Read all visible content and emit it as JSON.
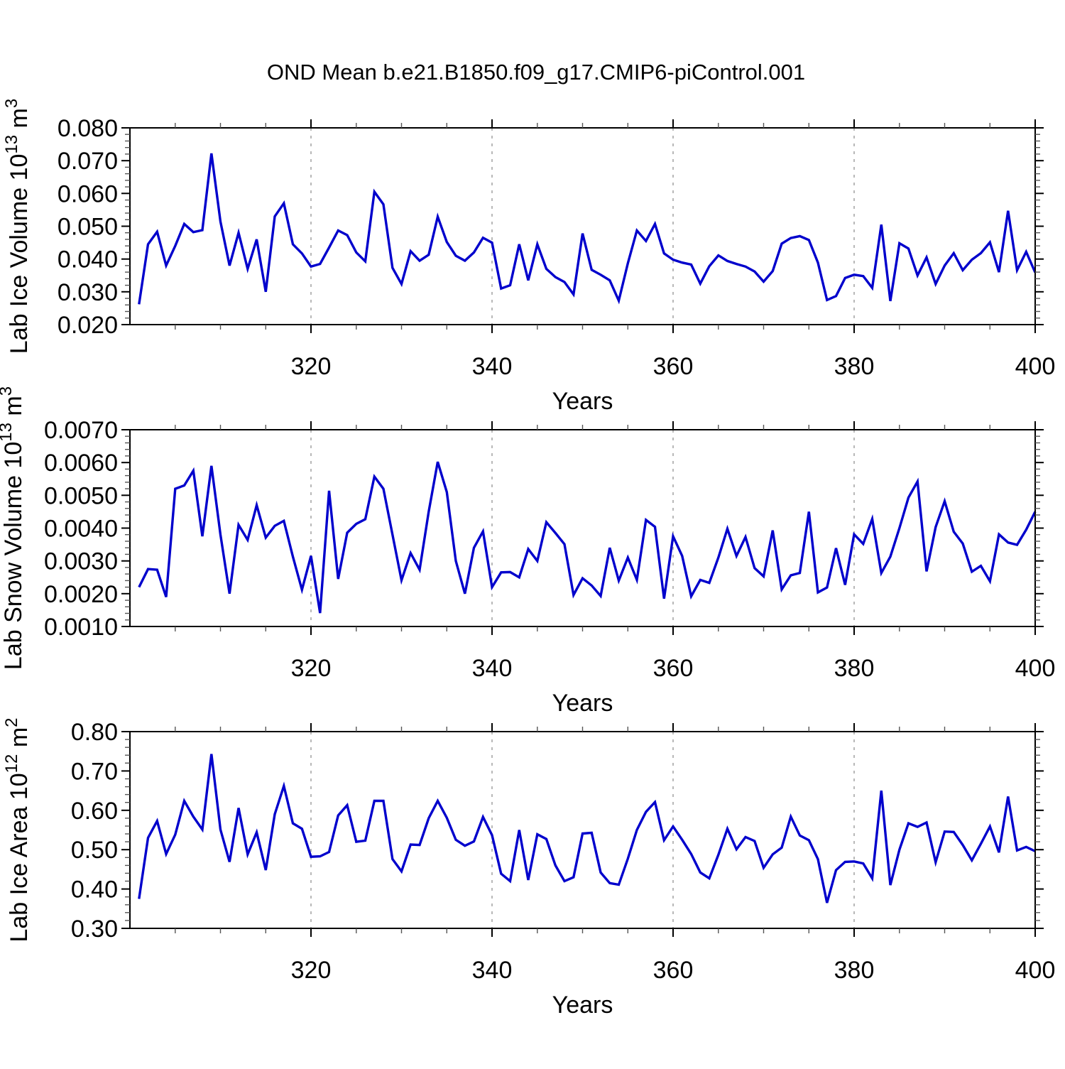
{
  "chart_data": {
    "type": "line",
    "title": "OND Mean b.e21.B1850.f09_g17.CMIP6-piControl.001",
    "xlabel": "Years",
    "line_color": "#0000cc",
    "gridline_color": "#999999",
    "axis_color": "#000000",
    "legend": "none",
    "grid": "dashed vertical lines at x major ticks",
    "x_axis": {
      "min": 300,
      "max": 400,
      "major_ticks": [
        320,
        340,
        360,
        380,
        400
      ],
      "major_tick_labels": [
        "320",
        "340",
        "360",
        "380",
        "400"
      ],
      "minor_step": 5,
      "gridlines": [
        320,
        340,
        360,
        380
      ]
    },
    "x": [
      301,
      302,
      303,
      304,
      305,
      306,
      307,
      308,
      309,
      310,
      311,
      312,
      313,
      314,
      315,
      316,
      317,
      318,
      319,
      320,
      321,
      322,
      323,
      324,
      325,
      326,
      327,
      328,
      329,
      330,
      331,
      332,
      333,
      334,
      335,
      336,
      337,
      338,
      339,
      340,
      341,
      342,
      343,
      344,
      345,
      346,
      347,
      348,
      349,
      350,
      351,
      352,
      353,
      354,
      355,
      356,
      357,
      358,
      359,
      360,
      361,
      362,
      363,
      364,
      365,
      366,
      367,
      368,
      369,
      370,
      371,
      372,
      373,
      374,
      375,
      376,
      377,
      378,
      379,
      380,
      381,
      382,
      383,
      384,
      385,
      386,
      387,
      388,
      389,
      390,
      391,
      392,
      393,
      394,
      395,
      396,
      397,
      398,
      399,
      400
    ],
    "panels": [
      {
        "name": "ice-volume",
        "ylabel": "Lab Ice Volume 10^13 m^3",
        "ylabel_parts": [
          {
            "t": "Lab Ice Volume 10"
          },
          {
            "t": "13",
            "sup": true
          },
          {
            "t": " m",
            "reset": true
          },
          {
            "t": "3",
            "sup": true
          }
        ],
        "ylabel_x": 38,
        "ylim": [
          0.02,
          0.08
        ],
        "yticks": [
          0.02,
          0.03,
          0.04,
          0.05,
          0.06,
          0.07,
          0.08
        ],
        "ytick_labels": [
          "0.020",
          "0.030",
          "0.040",
          "0.050",
          "0.060",
          "0.070",
          "0.080"
        ],
        "yminor_step": 0.002,
        "values": [
          0.0262,
          0.0445,
          0.0483,
          0.038,
          0.044,
          0.0507,
          0.0482,
          0.0488,
          0.0722,
          0.0514,
          0.038,
          0.048,
          0.037,
          0.046,
          0.03,
          0.053,
          0.057,
          0.0445,
          0.0417,
          0.0377,
          0.0385,
          0.0435,
          0.0487,
          0.0473,
          0.042,
          0.0393,
          0.0605,
          0.0567,
          0.0373,
          0.0324,
          0.0424,
          0.0395,
          0.0413,
          0.0529,
          0.0452,
          0.041,
          0.0395,
          0.042,
          0.0465,
          0.045,
          0.031,
          0.032,
          0.0445,
          0.0335,
          0.0445,
          0.037,
          0.0345,
          0.033,
          0.0292,
          0.0478,
          0.0367,
          0.0352,
          0.0335,
          0.0273,
          0.0387,
          0.0487,
          0.0455,
          0.0507,
          0.0417,
          0.0398,
          0.0389,
          0.0383,
          0.0325,
          0.0378,
          0.0411,
          0.0394,
          0.0385,
          0.0377,
          0.0362,
          0.0331,
          0.0363,
          0.0447,
          0.0464,
          0.047,
          0.0458,
          0.0389,
          0.0275,
          0.0287,
          0.0342,
          0.0352,
          0.0348,
          0.0312,
          0.0505,
          0.0272,
          0.0448,
          0.0432,
          0.035,
          0.0405,
          0.0324,
          0.038,
          0.0418,
          0.0366,
          0.0398,
          0.0418,
          0.0451,
          0.036,
          0.0547,
          0.0366,
          0.0422,
          0.0359
        ]
      },
      {
        "name": "snow-volume",
        "ylabel": "Lab Snow Volume 10^13 m^3",
        "ylabel_parts": [
          {
            "t": "Lab Snow Volume 10"
          },
          {
            "t": "13",
            "sup": true
          },
          {
            "t": " m",
            "reset": true
          },
          {
            "t": "3",
            "sup": true
          }
        ],
        "ylabel_x": 30,
        "ylim": [
          0.001,
          0.007
        ],
        "yticks": [
          0.001,
          0.002,
          0.003,
          0.004,
          0.005,
          0.006,
          0.007
        ],
        "ytick_labels": [
          "0.0010",
          "0.0020",
          "0.0030",
          "0.0040",
          "0.0050",
          "0.0060",
          "0.0070"
        ],
        "yminor_step": 0.0002,
        "values": [
          0.0022,
          0.00275,
          0.00273,
          0.0019,
          0.0052,
          0.0053,
          0.00575,
          0.00375,
          0.0059,
          0.0038,
          0.002,
          0.0041,
          0.00364,
          0.0047,
          0.00371,
          0.00407,
          0.00422,
          0.00313,
          0.00212,
          0.00315,
          0.00141,
          0.00514,
          0.00245,
          0.00386,
          0.00413,
          0.00427,
          0.00557,
          0.0052,
          0.0038,
          0.00241,
          0.00324,
          0.00273,
          0.0045,
          0.00602,
          0.0051,
          0.003,
          0.002,
          0.0034,
          0.0039,
          0.0022,
          0.00265,
          0.00266,
          0.0025,
          0.00336,
          0.003,
          0.00418,
          0.00385,
          0.00351,
          0.00196,
          0.00247,
          0.00225,
          0.00193,
          0.0034,
          0.0024,
          0.0031,
          0.00242,
          0.00425,
          0.00404,
          0.00185,
          0.00375,
          0.00315,
          0.00192,
          0.00242,
          0.00233,
          0.0031,
          0.00398,
          0.00315,
          0.00373,
          0.00278,
          0.00253,
          0.00393,
          0.00213,
          0.00256,
          0.00263,
          0.0045,
          0.00204,
          0.00219,
          0.00339,
          0.00227,
          0.00381,
          0.00352,
          0.00428,
          0.00263,
          0.00313,
          0.004,
          0.00493,
          0.00542,
          0.00268,
          0.00403,
          0.00482,
          0.00389,
          0.00353,
          0.00267,
          0.00285,
          0.00238,
          0.00381,
          0.00356,
          0.00349,
          0.00395,
          0.0045
        ]
      },
      {
        "name": "ice-area",
        "ylabel": "Lab Ice Area 10^12 m^2",
        "ylabel_parts": [
          {
            "t": "Lab Ice Area 10"
          },
          {
            "t": "12",
            "sup": true
          },
          {
            "t": " m",
            "reset": true
          },
          {
            "t": "2",
            "sup": true
          }
        ],
        "ylabel_x": 38,
        "ylim": [
          0.3,
          0.8
        ],
        "yticks": [
          0.3,
          0.4,
          0.5,
          0.6,
          0.7,
          0.8
        ],
        "ytick_labels": [
          "0.30",
          "0.40",
          "0.50",
          "0.60",
          "0.70",
          "0.80"
        ],
        "yminor_step": 0.02,
        "values": [
          0.375,
          0.53,
          0.573,
          0.489,
          0.538,
          0.624,
          0.584,
          0.551,
          0.743,
          0.551,
          0.469,
          0.606,
          0.488,
          0.544,
          0.448,
          0.59,
          0.662,
          0.567,
          0.553,
          0.482,
          0.483,
          0.494,
          0.587,
          0.613,
          0.52,
          0.523,
          0.624,
          0.624,
          0.476,
          0.445,
          0.513,
          0.512,
          0.58,
          0.624,
          0.581,
          0.525,
          0.51,
          0.521,
          0.583,
          0.537,
          0.439,
          0.42,
          0.55,
          0.423,
          0.539,
          0.527,
          0.46,
          0.42,
          0.43,
          0.541,
          0.543,
          0.442,
          0.415,
          0.411,
          0.477,
          0.55,
          0.596,
          0.621,
          0.524,
          0.559,
          0.525,
          0.489,
          0.442,
          0.427,
          0.487,
          0.553,
          0.501,
          0.532,
          0.522,
          0.454,
          0.488,
          0.505,
          0.584,
          0.536,
          0.524,
          0.476,
          0.365,
          0.448,
          0.469,
          0.47,
          0.465,
          0.427,
          0.65,
          0.41,
          0.5,
          0.567,
          0.558,
          0.569,
          0.468,
          0.546,
          0.545,
          0.512,
          0.473,
          0.515,
          0.559,
          0.493,
          0.635,
          0.498,
          0.507,
          0.496
        ]
      }
    ]
  }
}
